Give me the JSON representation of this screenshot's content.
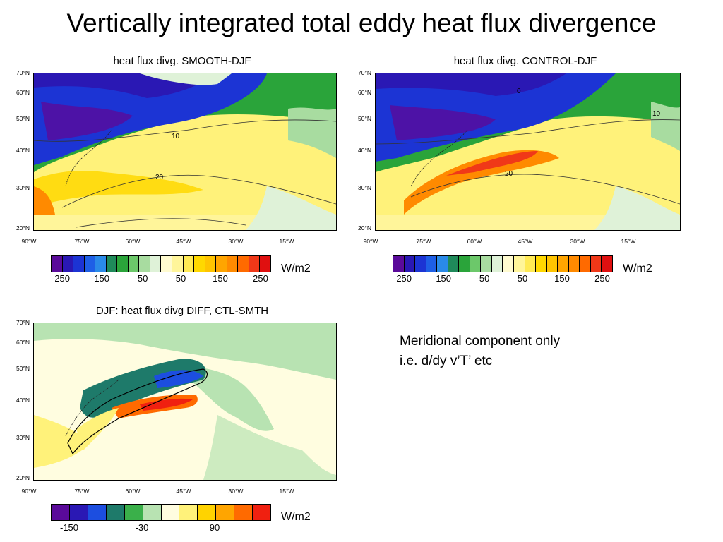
{
  "slide_title": "Vertically integrated total eddy heat flux divergence",
  "panels": {
    "smooth": {
      "title": "heat flux divg. SMOOTH-DJF",
      "contour_labels": [
        "10",
        "20"
      ]
    },
    "control": {
      "title": "heat flux divg. CONTROL-DJF",
      "contour_labels": [
        "0",
        "10",
        "20"
      ]
    },
    "diff": {
      "title": "DJF: heat flux divg DIFF, CTL-SMTH"
    }
  },
  "axes": {
    "lat_labels": [
      "70°N",
      "60°N",
      "50°N",
      "40°N",
      "30°N",
      "20°N"
    ],
    "lon_labels": [
      "90°W",
      "75°W",
      "60°W",
      "45°W",
      "30°W",
      "15°W"
    ]
  },
  "colorbars": {
    "main": {
      "ticks": [
        "-250",
        "-150",
        "-50",
        "50",
        "150",
        "250"
      ],
      "unit": "W/m2",
      "colors": [
        "#5a0a9a",
        "#2a18b4",
        "#1c34d4",
        "#1e5fe6",
        "#2a8ae8",
        "#1f8a5a",
        "#2aa43a",
        "#6cc86a",
        "#a8dca0",
        "#dff2d8",
        "#fffbd0",
        "#fff59a",
        "#ffea55",
        "#ffd800",
        "#ffc400",
        "#ffa500",
        "#ff8a00",
        "#ff6a00",
        "#f03818",
        "#e01010"
      ]
    },
    "diff": {
      "ticks": [
        "-150",
        "-30",
        "90"
      ],
      "unit": "W/m2",
      "colors": [
        "#5a0a9a",
        "#2a18b4",
        "#1c4ee0",
        "#1e7a6a",
        "#3ab04a",
        "#b8e3b2",
        "#fffde0",
        "#fff27a",
        "#ffd300",
        "#ffa500",
        "#ff6a00",
        "#f02010"
      ]
    }
  },
  "note": {
    "line1": "Meridional component only",
    "line2": "i.e. d/dy v’T’ etc"
  }
}
